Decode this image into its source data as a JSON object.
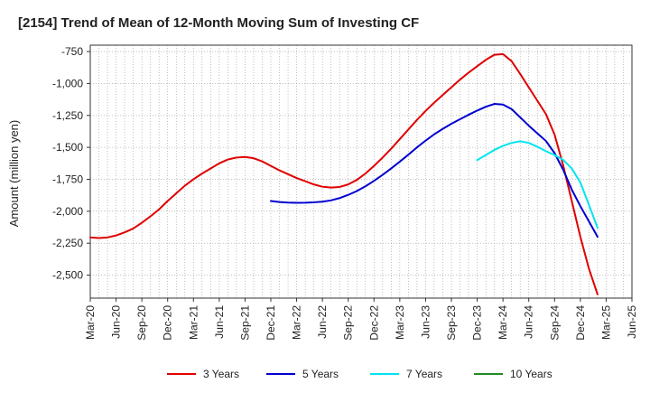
{
  "chart_data": {
    "type": "line",
    "title": "[2154]  Trend of Mean of 12-Month Moving Sum of Investing CF",
    "ylabel": "Amount (million yen)",
    "xlabel": "",
    "ylim": [
      -2680,
      -700
    ],
    "yticks": [
      -750,
      -1000,
      -1250,
      -1500,
      -1750,
      -2000,
      -2250,
      -2500
    ],
    "ytick_labels": [
      "-750",
      "-1,000",
      "-1,250",
      "-1,500",
      "-1,750",
      "-2,000",
      "-2,250",
      "-2,500"
    ],
    "x_start": "Mar-20",
    "x_ticks": [
      "Mar-20",
      "Jun-20",
      "Sep-20",
      "Dec-20",
      "Mar-21",
      "Jun-21",
      "Sep-21",
      "Dec-21",
      "Mar-22",
      "Jun-22",
      "Sep-22",
      "Dec-22",
      "Mar-23",
      "Jun-23",
      "Sep-23",
      "Dec-23",
      "Mar-24",
      "Jun-24",
      "Sep-24",
      "Dec-24",
      "Mar-25",
      "Jun-25"
    ],
    "grid": true,
    "legend_position": "bottom",
    "series": [
      {
        "name": "3 Years",
        "color": "#e00000",
        "points": [
          [
            0,
            -2205
          ],
          [
            1,
            -2210
          ],
          [
            2,
            -2205
          ],
          [
            3,
            -2190
          ],
          [
            4,
            -2165
          ],
          [
            5,
            -2135
          ],
          [
            6,
            -2090
          ],
          [
            7,
            -2040
          ],
          [
            8,
            -1985
          ],
          [
            9,
            -1920
          ],
          [
            10,
            -1860
          ],
          [
            11,
            -1800
          ],
          [
            12,
            -1750
          ],
          [
            13,
            -1705
          ],
          [
            14,
            -1665
          ],
          [
            15,
            -1625
          ],
          [
            16,
            -1595
          ],
          [
            17,
            -1580
          ],
          [
            18,
            -1575
          ],
          [
            19,
            -1585
          ],
          [
            20,
            -1610
          ],
          [
            21,
            -1645
          ],
          [
            22,
            -1680
          ],
          [
            23,
            -1710
          ],
          [
            24,
            -1740
          ],
          [
            25,
            -1765
          ],
          [
            26,
            -1790
          ],
          [
            27,
            -1808
          ],
          [
            28,
            -1815
          ],
          [
            29,
            -1810
          ],
          [
            30,
            -1790
          ],
          [
            31,
            -1755
          ],
          [
            32,
            -1705
          ],
          [
            33,
            -1645
          ],
          [
            34,
            -1580
          ],
          [
            35,
            -1510
          ],
          [
            36,
            -1435
          ],
          [
            37,
            -1360
          ],
          [
            38,
            -1285
          ],
          [
            39,
            -1215
          ],
          [
            40,
            -1150
          ],
          [
            41,
            -1090
          ],
          [
            42,
            -1030
          ],
          [
            43,
            -970
          ],
          [
            44,
            -915
          ],
          [
            45,
            -865
          ],
          [
            46,
            -815
          ],
          [
            47,
            -775
          ],
          [
            48,
            -770
          ],
          [
            49,
            -825
          ],
          [
            50,
            -925
          ],
          [
            51,
            -1030
          ],
          [
            52,
            -1135
          ],
          [
            53,
            -1240
          ],
          [
            54,
            -1400
          ],
          [
            55,
            -1640
          ],
          [
            56,
            -1920
          ],
          [
            57,
            -2200
          ],
          [
            58,
            -2450
          ],
          [
            59,
            -2650
          ]
        ]
      },
      {
        "name": "5 Years",
        "color": "#0000d0",
        "points": [
          [
            21,
            -1920
          ],
          [
            22,
            -1928
          ],
          [
            23,
            -1932
          ],
          [
            24,
            -1934
          ],
          [
            25,
            -1933
          ],
          [
            26,
            -1930
          ],
          [
            27,
            -1925
          ],
          [
            28,
            -1915
          ],
          [
            29,
            -1897
          ],
          [
            30,
            -1872
          ],
          [
            31,
            -1842
          ],
          [
            32,
            -1805
          ],
          [
            33,
            -1762
          ],
          [
            34,
            -1715
          ],
          [
            35,
            -1665
          ],
          [
            36,
            -1612
          ],
          [
            37,
            -1557
          ],
          [
            38,
            -1500
          ],
          [
            39,
            -1447
          ],
          [
            40,
            -1398
          ],
          [
            41,
            -1355
          ],
          [
            42,
            -1315
          ],
          [
            43,
            -1280
          ],
          [
            44,
            -1245
          ],
          [
            45,
            -1212
          ],
          [
            46,
            -1182
          ],
          [
            47,
            -1160
          ],
          [
            48,
            -1165
          ],
          [
            49,
            -1200
          ],
          [
            50,
            -1265
          ],
          [
            51,
            -1330
          ],
          [
            52,
            -1390
          ],
          [
            53,
            -1450
          ],
          [
            54,
            -1545
          ],
          [
            55,
            -1675
          ],
          [
            56,
            -1830
          ],
          [
            57,
            -1960
          ],
          [
            58,
            -2080
          ],
          [
            59,
            -2200
          ]
        ]
      },
      {
        "name": "7 Years",
        "color": "#00e5ee",
        "points": [
          [
            45,
            -1600
          ],
          [
            46,
            -1560
          ],
          [
            47,
            -1520
          ],
          [
            48,
            -1488
          ],
          [
            49,
            -1465
          ],
          [
            50,
            -1452
          ],
          [
            51,
            -1465
          ],
          [
            52,
            -1495
          ],
          [
            53,
            -1530
          ],
          [
            54,
            -1560
          ],
          [
            55,
            -1598
          ],
          [
            56,
            -1665
          ],
          [
            57,
            -1775
          ],
          [
            58,
            -1950
          ],
          [
            59,
            -2130
          ]
        ]
      },
      {
        "name": "10 Years",
        "color": "#228b22",
        "points": []
      }
    ]
  }
}
